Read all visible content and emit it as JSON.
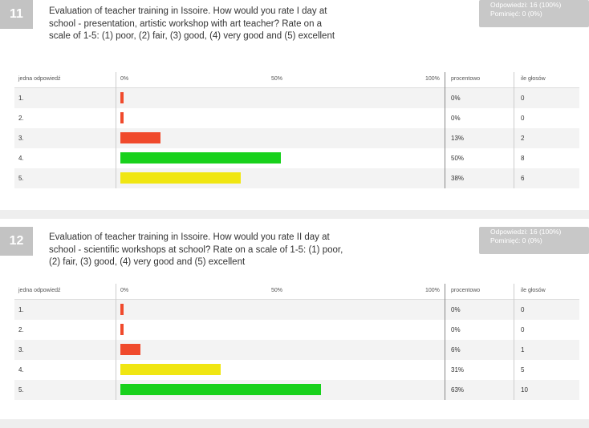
{
  "questions": [
    {
      "number": "11",
      "text": "Evaluation of teacher training in Issoire. How would you rate I day at school - presentation, artistic workshop with art teacher? Rate on a scale of 1-5: (1) poor, (2) fair, (3) good, (4) very good and (5) excellent",
      "stats": {
        "responses": "Odpowiedzi: 16 (100%)",
        "skipped": "Pominięć: 0 (0%)"
      },
      "headers": {
        "answer": "jedna odpowiedź",
        "p0": "0%",
        "p50": "50%",
        "p100": "100%",
        "percent": "procentowo",
        "votes": "ile głosów"
      },
      "rows": [
        {
          "label": "1.",
          "percent": "0%",
          "votes": "0",
          "value": 0,
          "color": "#f04a2c"
        },
        {
          "label": "2.",
          "percent": "0%",
          "votes": "0",
          "value": 0,
          "color": "#f04a2c"
        },
        {
          "label": "3.",
          "percent": "13%",
          "votes": "2",
          "value": 12.5,
          "color": "#f04a2c"
        },
        {
          "label": "4.",
          "percent": "50%",
          "votes": "8",
          "value": 50,
          "color": "#18d11c"
        },
        {
          "label": "5.",
          "percent": "38%",
          "votes": "6",
          "value": 37.5,
          "color": "#f0e612"
        }
      ]
    },
    {
      "number": "12",
      "text": "Evaluation of teacher training in Issoire. How would you rate II day at school - scientific workshops at school? Rate on a scale of 1-5: (1) poor, (2) fair, (3) good, (4) very good and (5) excellent",
      "stats": {
        "responses": "Odpowiedzi: 16 (100%)",
        "skipped": "Pominięć: 0 (0%)"
      },
      "headers": {
        "answer": "jedna odpowiedź",
        "p0": "0%",
        "p50": "50%",
        "p100": "100%",
        "percent": "procentowo",
        "votes": "ile głosów"
      },
      "rows": [
        {
          "label": "1.",
          "percent": "0%",
          "votes": "0",
          "value": 0,
          "color": "#f04a2c"
        },
        {
          "label": "2.",
          "percent": "0%",
          "votes": "0",
          "value": 0,
          "color": "#f04a2c"
        },
        {
          "label": "3.",
          "percent": "6%",
          "votes": "1",
          "value": 6.25,
          "color": "#f04a2c"
        },
        {
          "label": "4.",
          "percent": "31%",
          "votes": "5",
          "value": 31.25,
          "color": "#f0e612"
        },
        {
          "label": "5.",
          "percent": "63%",
          "votes": "10",
          "value": 62.5,
          "color": "#18d11c"
        }
      ]
    }
  ],
  "chart_data": [
    {
      "type": "bar",
      "categories": [
        "1.",
        "2.",
        "3.",
        "4.",
        "5."
      ],
      "values": [
        0,
        0,
        12.5,
        50,
        37.5
      ],
      "xlim": [
        0,
        100
      ]
    },
    {
      "type": "bar",
      "categories": [
        "1.",
        "2.",
        "3.",
        "4.",
        "5."
      ],
      "values": [
        0,
        0,
        6.25,
        31.25,
        62.5
      ],
      "xlim": [
        0,
        100
      ]
    }
  ]
}
